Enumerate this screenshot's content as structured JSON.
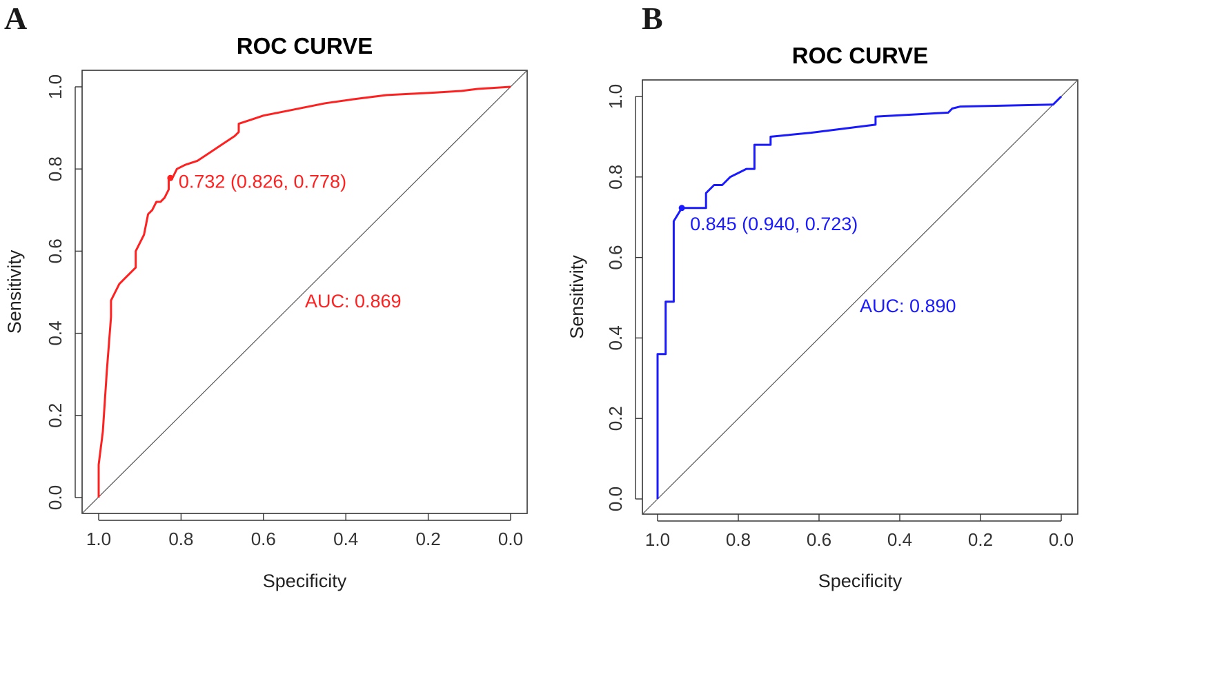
{
  "chart_data": [
    {
      "panel": "A",
      "type": "line",
      "title": "ROC CURVE",
      "xlabel": "Specificity",
      "ylabel": "Sensitivity",
      "xlim": [
        1.0,
        0.0
      ],
      "ylim": [
        0.0,
        1.0
      ],
      "x_ticks": [
        "1.0",
        "0.8",
        "0.6",
        "0.4",
        "0.2",
        "0.0"
      ],
      "y_ticks": [
        "0.0",
        "0.2",
        "0.4",
        "0.6",
        "0.8",
        "1.0"
      ],
      "color": "#ff2020",
      "series": [
        {
          "name": "ROC",
          "specificity": [
            1.0,
            1.0,
            0.99,
            0.98,
            0.98,
            0.97,
            0.97,
            0.96,
            0.95,
            0.94,
            0.91,
            0.91,
            0.89,
            0.88,
            0.87,
            0.86,
            0.85,
            0.84,
            0.83,
            0.83,
            0.82,
            0.81,
            0.79,
            0.76,
            0.73,
            0.7,
            0.67,
            0.66,
            0.66,
            0.63,
            0.6,
            0.55,
            0.5,
            0.45,
            0.38,
            0.3,
            0.2,
            0.12,
            0.08,
            0.0
          ],
          "sensitivity": [
            0.0,
            0.08,
            0.16,
            0.31,
            0.31,
            0.44,
            0.48,
            0.5,
            0.52,
            0.53,
            0.56,
            0.6,
            0.64,
            0.69,
            0.7,
            0.72,
            0.72,
            0.73,
            0.75,
            0.778,
            0.78,
            0.8,
            0.81,
            0.82,
            0.84,
            0.86,
            0.88,
            0.89,
            0.91,
            0.92,
            0.93,
            0.94,
            0.95,
            0.96,
            0.97,
            0.98,
            0.985,
            0.99,
            0.995,
            1.0
          ]
        }
      ],
      "best_point": {
        "specificity": 0.826,
        "sensitivity": 0.778,
        "label": "0.732 (0.826, 0.778)"
      },
      "auc_label": "AUC: 0.869"
    },
    {
      "panel": "B",
      "type": "line",
      "title": "ROC CURVE",
      "xlabel": "Specificity",
      "ylabel": "Sensitivity",
      "xlim": [
        1.0,
        0.0
      ],
      "ylim": [
        0.0,
        1.0
      ],
      "x_ticks": [
        "1.0",
        "0.8",
        "0.6",
        "0.4",
        "0.2",
        "0.0"
      ],
      "y_ticks": [
        "0.0",
        "0.2",
        "0.4",
        "0.6",
        "0.8",
        "1.0"
      ],
      "color": "#1a1aff",
      "series": [
        {
          "name": "ROC",
          "specificity": [
            1.0,
            1.0,
            0.98,
            0.98,
            0.96,
            0.96,
            0.94,
            0.94,
            0.88,
            0.88,
            0.86,
            0.84,
            0.82,
            0.8,
            0.78,
            0.76,
            0.76,
            0.72,
            0.72,
            0.62,
            0.46,
            0.46,
            0.28,
            0.27,
            0.25,
            0.02,
            0.0
          ],
          "sensitivity": [
            0.0,
            0.36,
            0.36,
            0.49,
            0.49,
            0.69,
            0.723,
            0.723,
            0.723,
            0.76,
            0.78,
            0.78,
            0.8,
            0.81,
            0.82,
            0.82,
            0.88,
            0.88,
            0.9,
            0.91,
            0.93,
            0.95,
            0.96,
            0.97,
            0.975,
            0.98,
            1.0
          ]
        }
      ],
      "best_point": {
        "specificity": 0.94,
        "sensitivity": 0.723,
        "label": "0.845 (0.940, 0.723)"
      },
      "auc_label": "AUC: 0.890"
    }
  ]
}
